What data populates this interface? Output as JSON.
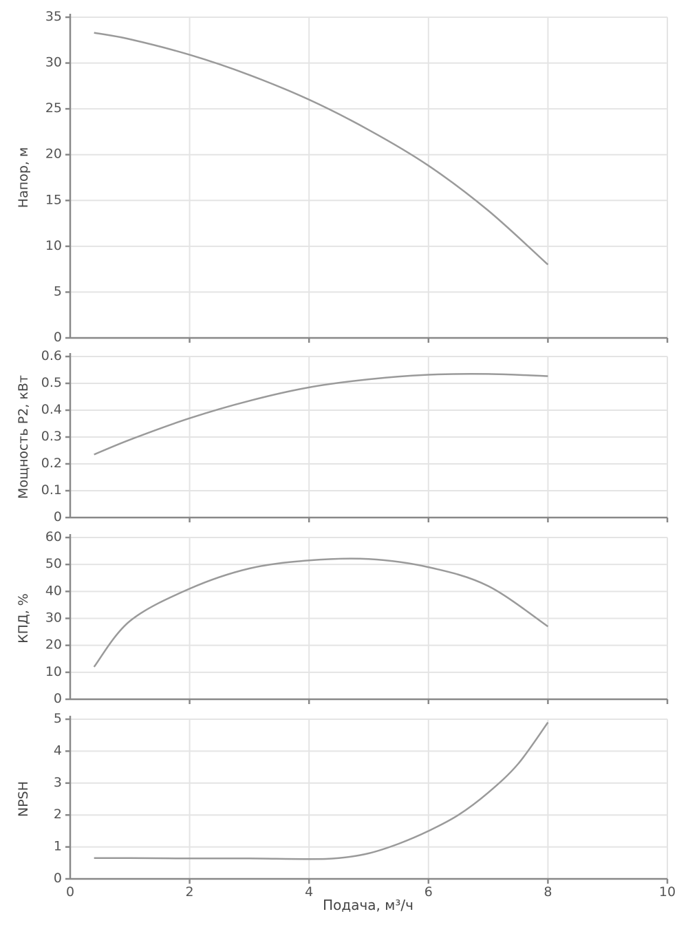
{
  "chart_data": [
    {
      "type": "line",
      "ylabel": "Напор, м",
      "ylim": [
        0,
        35
      ],
      "yticks": [
        "0",
        "5",
        "10",
        "15",
        "20",
        "25",
        "30",
        "35"
      ],
      "x": [
        0.4,
        1,
        2,
        3,
        4,
        5,
        6,
        7,
        8
      ],
      "series": [
        {
          "values": [
            33.3,
            32.6,
            30.9,
            28.7,
            26.0,
            22.7,
            18.8,
            13.9,
            8.0
          ]
        }
      ]
    },
    {
      "type": "line",
      "ylabel": "Мощность P2, кВт",
      "ylim": [
        0,
        0.6
      ],
      "yticks": [
        "0",
        "0.1",
        "0.2",
        "0.3",
        "0.4",
        "0.5",
        "0.6"
      ],
      "x": [
        0.4,
        1,
        2,
        3,
        4,
        5,
        6,
        7,
        8
      ],
      "series": [
        {
          "values": [
            0.235,
            0.29,
            0.37,
            0.435,
            0.485,
            0.515,
            0.532,
            0.535,
            0.527
          ]
        }
      ]
    },
    {
      "type": "line",
      "ylabel": "КПД, %",
      "ylim": [
        0,
        60
      ],
      "yticks": [
        "0",
        "10",
        "20",
        "30",
        "40",
        "50",
        "60"
      ],
      "x": [
        0.4,
        1,
        2,
        3,
        4,
        5,
        6,
        7,
        8
      ],
      "series": [
        {
          "values": [
            12,
            29,
            41,
            48.5,
            51.5,
            52,
            49,
            42,
            27
          ]
        }
      ]
    },
    {
      "type": "line",
      "ylabel": "NPSH",
      "ylim": [
        0,
        5
      ],
      "yticks": [
        "0",
        "1",
        "2",
        "3",
        "4",
        "5"
      ],
      "x": [
        0.4,
        1,
        2,
        3,
        4,
        4.5,
        5,
        5.5,
        6,
        6.5,
        7,
        7.5,
        8
      ],
      "series": [
        {
          "values": [
            0.65,
            0.65,
            0.64,
            0.64,
            0.62,
            0.65,
            0.8,
            1.1,
            1.5,
            2.0,
            2.7,
            3.6,
            4.9
          ]
        }
      ]
    }
  ],
  "x_axis": {
    "label": "Подача, м³/ч",
    "xlim": [
      0,
      10
    ],
    "ticks": [
      "0",
      "2",
      "4",
      "6",
      "8",
      "10"
    ]
  }
}
